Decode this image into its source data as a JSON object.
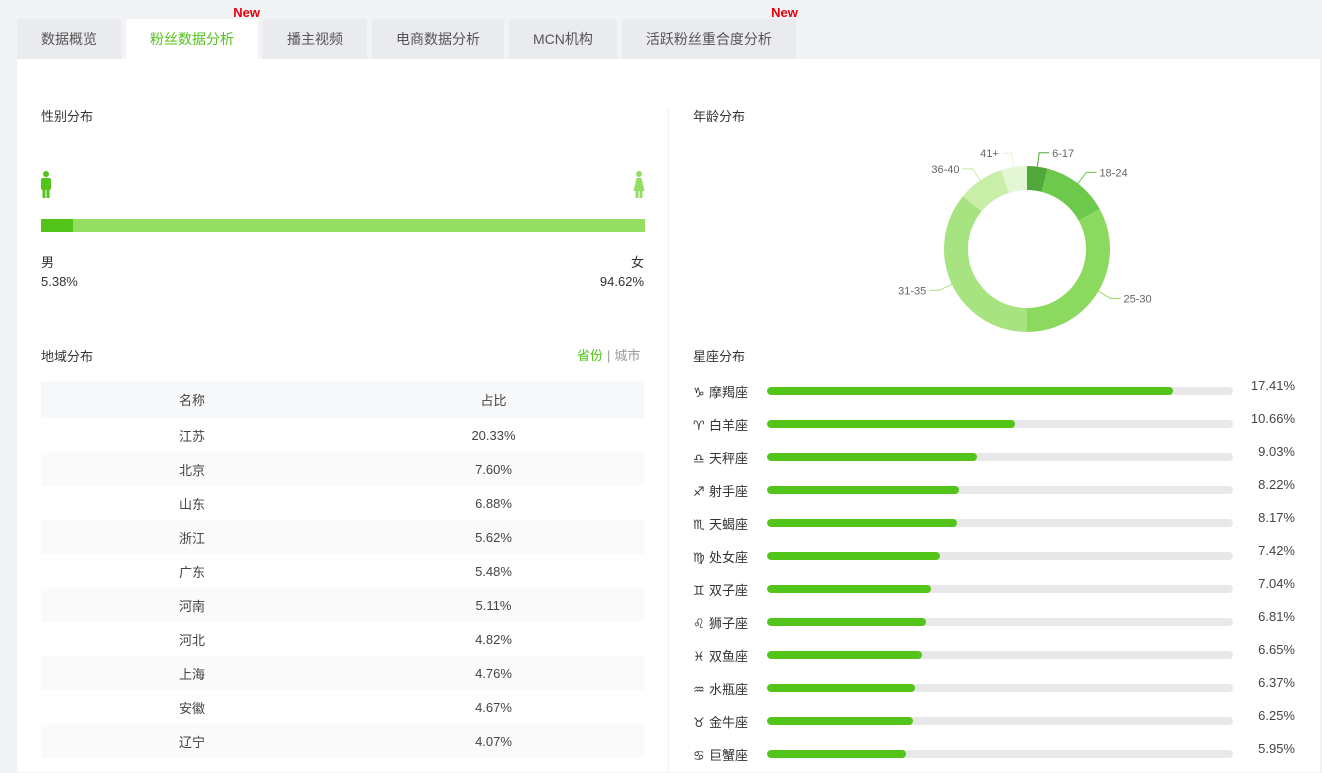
{
  "tabs": [
    {
      "label": "数据概览",
      "active": false,
      "badge": ""
    },
    {
      "label": "粉丝数据分析",
      "active": true,
      "badge": "New"
    },
    {
      "label": "播主视频",
      "active": false,
      "badge": ""
    },
    {
      "label": "电商数据分析",
      "active": false,
      "badge": ""
    },
    {
      "label": "MCN机构",
      "active": false,
      "badge": ""
    },
    {
      "label": "活跃粉丝重合度分析",
      "active": false,
      "badge": "New"
    }
  ],
  "gender": {
    "title": "性别分布",
    "male_label": "男",
    "male_pct": "5.38%",
    "male_value": 5.38,
    "female_label": "女",
    "female_pct": "94.62%",
    "female_value": 94.62,
    "male_icon": "male-icon",
    "female_icon": "female-icon"
  },
  "region": {
    "title": "地域分布",
    "switch_province": "省份",
    "switch_sep": "|",
    "switch_city": "城市",
    "columns": [
      "名称",
      "占比"
    ],
    "rows": [
      [
        "江苏",
        "20.33%"
      ],
      [
        "北京",
        "7.60%"
      ],
      [
        "山东",
        "6.88%"
      ],
      [
        "浙江",
        "5.62%"
      ],
      [
        "广东",
        "5.48%"
      ],
      [
        "河南",
        "5.11%"
      ],
      [
        "河北",
        "4.82%"
      ],
      [
        "上海",
        "4.76%"
      ],
      [
        "安徽",
        "4.67%"
      ],
      [
        "辽宁",
        "4.07%"
      ]
    ]
  },
  "age": {
    "title": "年龄分布",
    "segments": [
      {
        "label": "6-17",
        "value": 4,
        "color": "#52a83a"
      },
      {
        "label": "18-24",
        "value": 13,
        "color": "#6cc94c"
      },
      {
        "label": "25-30",
        "value": 33,
        "color": "#8bd95e"
      },
      {
        "label": "31-35",
        "value": 36,
        "color": "#a8e381"
      },
      {
        "label": "36-40",
        "value": 9,
        "color": "#c8eea8"
      },
      {
        "label": "41+",
        "value": 5,
        "color": "#e4f7d4"
      }
    ]
  },
  "zodiac": {
    "title": "星座分布",
    "items": [
      {
        "symbol": "♑",
        "name": "摩羯座",
        "pct": "17.41%",
        "value": 17.41
      },
      {
        "symbol": "♈",
        "name": "白羊座",
        "pct": "10.66%",
        "value": 10.66
      },
      {
        "symbol": "♎",
        "name": "天秤座",
        "pct": "9.03%",
        "value": 9.03
      },
      {
        "symbol": "♐",
        "name": "射手座",
        "pct": "8.22%",
        "value": 8.22
      },
      {
        "symbol": "♏",
        "name": "天蝎座",
        "pct": "8.17%",
        "value": 8.17
      },
      {
        "symbol": "♍",
        "name": "处女座",
        "pct": "7.42%",
        "value": 7.42
      },
      {
        "symbol": "♊",
        "name": "双子座",
        "pct": "7.04%",
        "value": 7.04
      },
      {
        "symbol": "♌",
        "name": "狮子座",
        "pct": "6.81%",
        "value": 6.81
      },
      {
        "symbol": "♓",
        "name": "双鱼座",
        "pct": "6.65%",
        "value": 6.65
      },
      {
        "symbol": "♒",
        "name": "水瓶座",
        "pct": "6.37%",
        "value": 6.37
      },
      {
        "symbol": "♉",
        "name": "金牛座",
        "pct": "6.25%",
        "value": 6.25
      },
      {
        "symbol": "♋",
        "name": "巨蟹座",
        "pct": "5.95%",
        "value": 5.95
      }
    ]
  },
  "colors": {
    "accent": "#52c41a",
    "female_bar": "#95de64",
    "badge_red": "#e8000b"
  }
}
